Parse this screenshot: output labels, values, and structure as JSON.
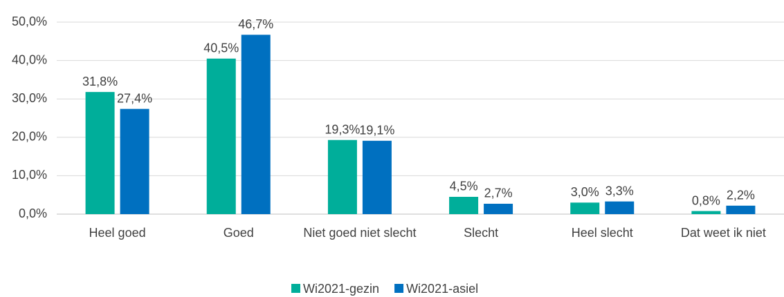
{
  "chart_data": {
    "type": "bar",
    "categories": [
      "Heel goed",
      "Goed",
      "Niet goed niet slecht",
      "Slecht",
      "Heel slecht",
      "Dat weet ik niet"
    ],
    "series": [
      {
        "name": "Wi2021-gezin",
        "color": "#00ae9a",
        "values": [
          31.8,
          40.5,
          19.3,
          4.5,
          3.0,
          0.8
        ],
        "value_labels": [
          "31,8%",
          "40,5%",
          "19,3%",
          "4,5%",
          "3,0%",
          "0,8%"
        ]
      },
      {
        "name": "Wi2021-asiel",
        "color": "#0070c0",
        "values": [
          27.4,
          46.7,
          19.1,
          2.7,
          3.3,
          2.2
        ],
        "value_labels": [
          "27,4%",
          "46,7%",
          "19,1%",
          "2,7%",
          "3,3%",
          "2,2%"
        ]
      }
    ],
    "ylim": [
      0,
      50
    ],
    "yticks": [
      {
        "value": 0,
        "label": "0,0%"
      },
      {
        "value": 10,
        "label": "10,0%"
      },
      {
        "value": 20,
        "label": "20,0%"
      },
      {
        "value": 30,
        "label": "30,0%"
      },
      {
        "value": 40,
        "label": "40,0%"
      },
      {
        "value": 50,
        "label": "50,0%"
      }
    ],
    "grid": true,
    "legend": "bottom"
  }
}
